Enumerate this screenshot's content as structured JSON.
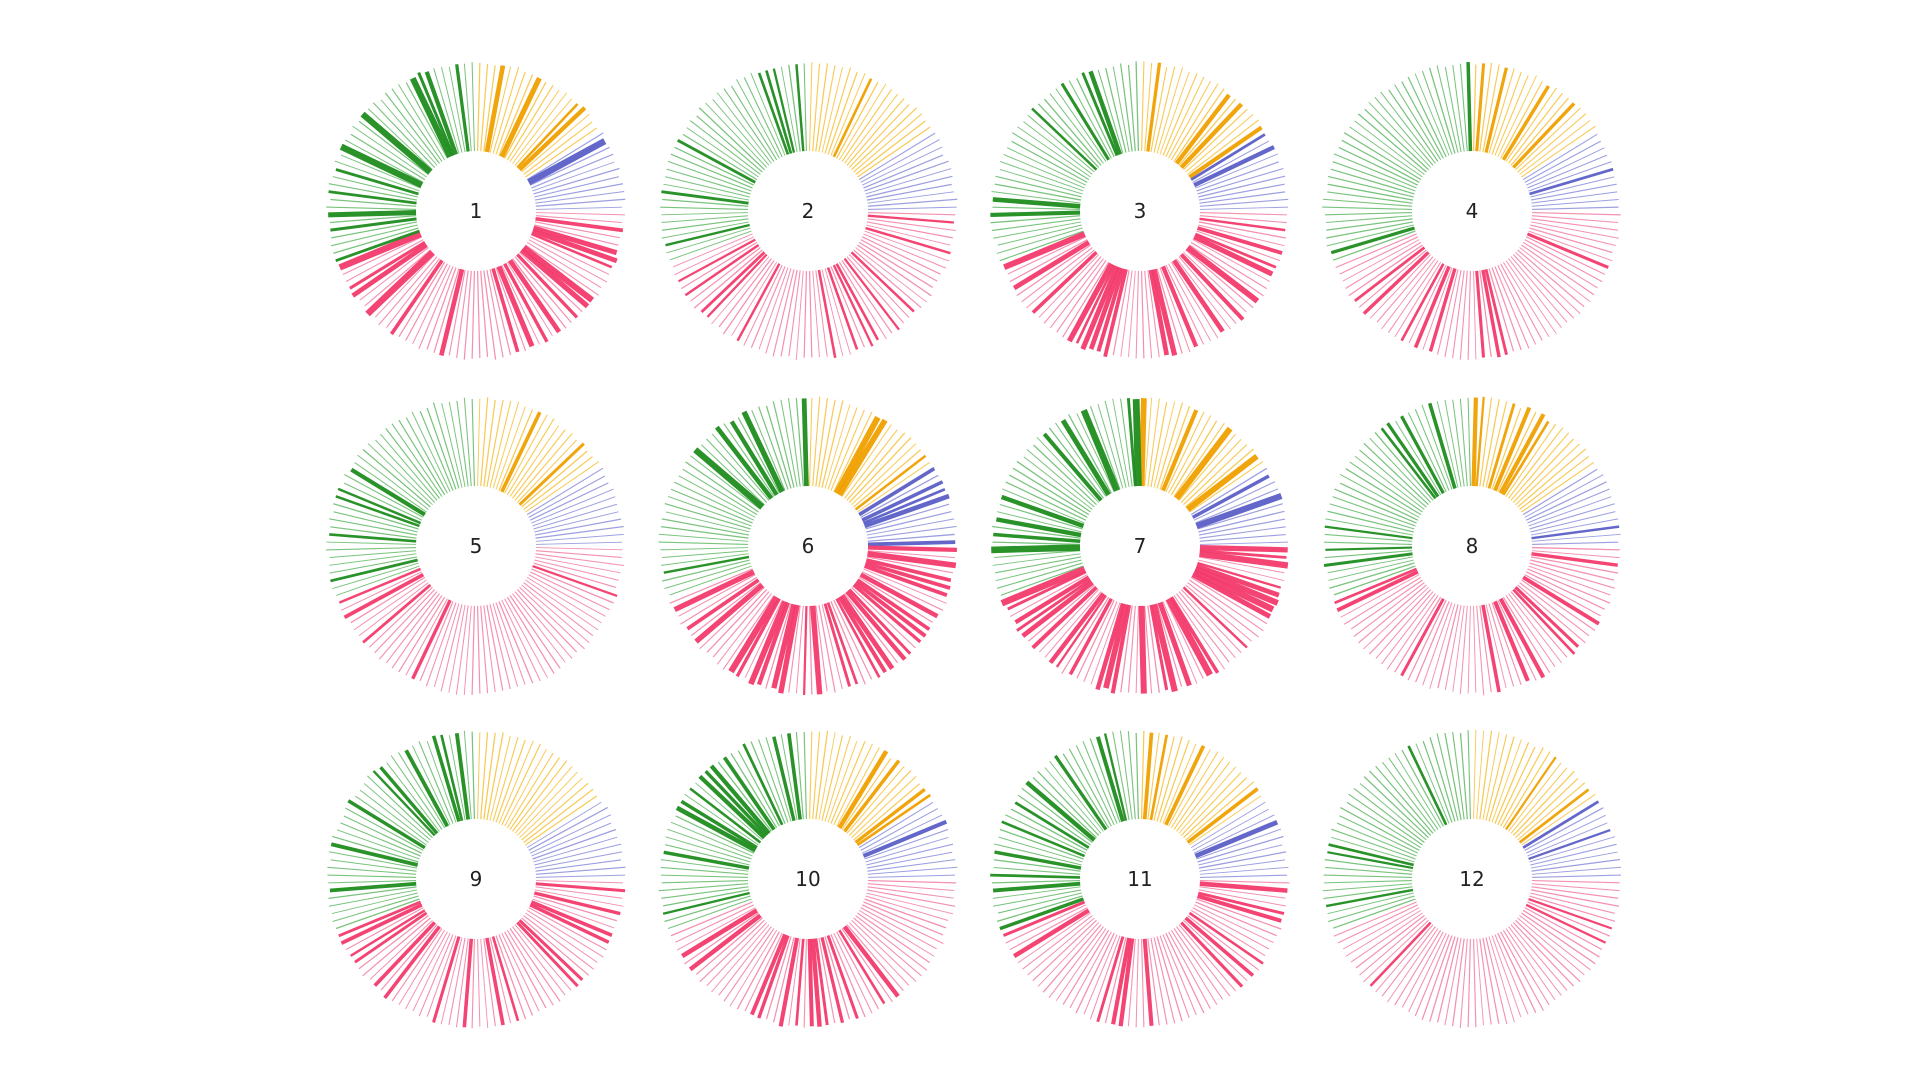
{
  "chart_data": {
    "type": "radial-small-multiples",
    "title": "",
    "subtitle": "",
    "colors": {
      "green": "#4caf50",
      "green_strong": "#1e8c1e",
      "yellow": "#f5b81c",
      "yellow_strong": "#f0a000",
      "blue": "#7b7fd6",
      "blue_strong": "#5c5fc7",
      "pink": "#f06b96",
      "pink_strong": "#f23a6b"
    },
    "segments": [
      {
        "name": "yellow",
        "start_deg": 0,
        "end_deg": 57
      },
      {
        "name": "blue",
        "start_deg": 57,
        "end_deg": 89
      },
      {
        "name": "pink",
        "start_deg": 89,
        "end_deg": 250
      },
      {
        "name": "green",
        "start_deg": 250,
        "end_deg": 360
      }
    ],
    "spoke_count": 120,
    "wheels": [
      {
        "label": "1",
        "intensity": 0.95
      },
      {
        "label": "2",
        "intensity": 0.15
      },
      {
        "label": "3",
        "intensity": 0.8
      },
      {
        "label": "4",
        "intensity": 0.3
      },
      {
        "label": "5",
        "intensity": 0.45
      },
      {
        "label": "6",
        "intensity": 0.9
      },
      {
        "label": "7",
        "intensity": 1.0
      },
      {
        "label": "8",
        "intensity": 0.4
      },
      {
        "label": "9",
        "intensity": 0.35
      },
      {
        "label": "10",
        "intensity": 0.5
      },
      {
        "label": "11",
        "intensity": 0.6
      },
      {
        "label": "12",
        "intensity": 0.1
      }
    ]
  }
}
